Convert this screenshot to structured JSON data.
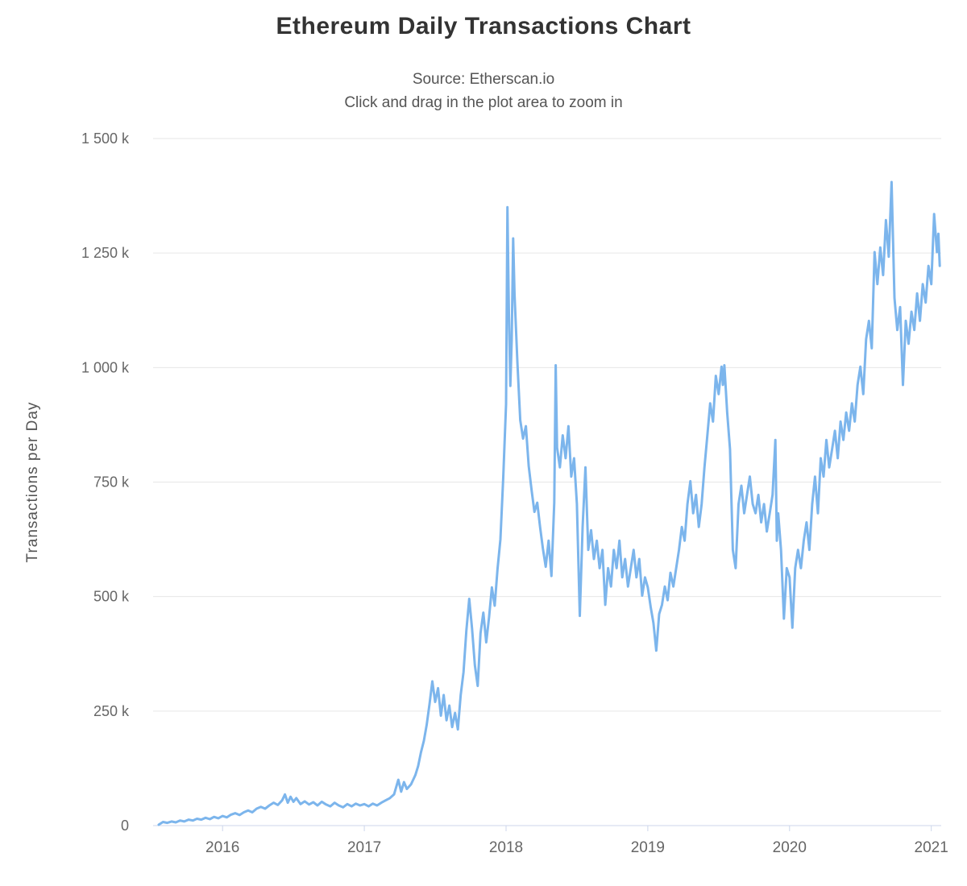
{
  "chart": {
    "title": "Ethereum Daily Transactions Chart",
    "subtitle_line1": "Source: Etherscan.io",
    "subtitle_line2": "Click and drag in the plot area to zoom in"
  },
  "chart_data": {
    "type": "line",
    "title": "Ethereum Daily Transactions Chart",
    "subtitle": [
      "Source: Etherscan.io",
      "Click and drag in the plot area to zoom in"
    ],
    "xlabel": "",
    "ylabel": "Transactions per Day",
    "x_unit": "year (decimal)",
    "y_unit": "transactions per day (thousands)",
    "xlim": [
      2015.51,
      2021.07
    ],
    "ylim": [
      0,
      1500
    ],
    "grid": "horizontal",
    "legend": "none",
    "line_color": "#7cb5ec",
    "grid_color": "#e6e6e6",
    "axis_color": "#ccd6eb",
    "yticks": [
      {
        "value": 0,
        "label": "0"
      },
      {
        "value": 250,
        "label": "250 k"
      },
      {
        "value": 500,
        "label": "500 k"
      },
      {
        "value": 750,
        "label": "750 k"
      },
      {
        "value": 1000,
        "label": "1 000 k"
      },
      {
        "value": 1250,
        "label": "1 250 k"
      },
      {
        "value": 1500,
        "label": "1 500 k"
      }
    ],
    "xticks": [
      {
        "value": 2016,
        "label": "2016"
      },
      {
        "value": 2017,
        "label": "2017"
      },
      {
        "value": 2018,
        "label": "2018"
      },
      {
        "value": 2019,
        "label": "2019"
      },
      {
        "value": 2020,
        "label": "2020"
      },
      {
        "value": 2021,
        "label": "2021"
      }
    ],
    "series": [
      {
        "name": "Transactions per Day",
        "points": [
          [
            2015.55,
            2
          ],
          [
            2015.58,
            8
          ],
          [
            2015.61,
            6
          ],
          [
            2015.64,
            9
          ],
          [
            2015.67,
            7
          ],
          [
            2015.7,
            11
          ],
          [
            2015.73,
            9
          ],
          [
            2015.76,
            13
          ],
          [
            2015.79,
            11
          ],
          [
            2015.82,
            15
          ],
          [
            2015.85,
            13
          ],
          [
            2015.88,
            17
          ],
          [
            2015.91,
            14
          ],
          [
            2015.94,
            19
          ],
          [
            2015.97,
            16
          ],
          [
            2016.0,
            21
          ],
          [
            2016.03,
            18
          ],
          [
            2016.06,
            24
          ],
          [
            2016.09,
            27
          ],
          [
            2016.12,
            23
          ],
          [
            2016.15,
            29
          ],
          [
            2016.18,
            33
          ],
          [
            2016.21,
            29
          ],
          [
            2016.24,
            37
          ],
          [
            2016.27,
            41
          ],
          [
            2016.3,
            37
          ],
          [
            2016.33,
            44
          ],
          [
            2016.36,
            50
          ],
          [
            2016.39,
            45
          ],
          [
            2016.42,
            55
          ],
          [
            2016.44,
            68
          ],
          [
            2016.46,
            50
          ],
          [
            2016.48,
            63
          ],
          [
            2016.5,
            52
          ],
          [
            2016.52,
            60
          ],
          [
            2016.55,
            47
          ],
          [
            2016.58,
            53
          ],
          [
            2016.61,
            46
          ],
          [
            2016.64,
            51
          ],
          [
            2016.67,
            44
          ],
          [
            2016.7,
            52
          ],
          [
            2016.73,
            46
          ],
          [
            2016.76,
            42
          ],
          [
            2016.79,
            50
          ],
          [
            2016.82,
            44
          ],
          [
            2016.85,
            40
          ],
          [
            2016.88,
            47
          ],
          [
            2016.91,
            42
          ],
          [
            2016.94,
            48
          ],
          [
            2016.97,
            44
          ],
          [
            2017.0,
            47
          ],
          [
            2017.03,
            42
          ],
          [
            2017.06,
            48
          ],
          [
            2017.09,
            44
          ],
          [
            2017.12,
            50
          ],
          [
            2017.15,
            55
          ],
          [
            2017.18,
            60
          ],
          [
            2017.21,
            68
          ],
          [
            2017.24,
            100
          ],
          [
            2017.26,
            74
          ],
          [
            2017.28,
            95
          ],
          [
            2017.3,
            80
          ],
          [
            2017.33,
            90
          ],
          [
            2017.36,
            110
          ],
          [
            2017.38,
            130
          ],
          [
            2017.4,
            160
          ],
          [
            2017.42,
            185
          ],
          [
            2017.44,
            220
          ],
          [
            2017.46,
            265
          ],
          [
            2017.48,
            315
          ],
          [
            2017.5,
            270
          ],
          [
            2017.52,
            300
          ],
          [
            2017.54,
            240
          ],
          [
            2017.56,
            285
          ],
          [
            2017.58,
            230
          ],
          [
            2017.6,
            262
          ],
          [
            2017.62,
            215
          ],
          [
            2017.64,
            246
          ],
          [
            2017.66,
            210
          ],
          [
            2017.68,
            285
          ],
          [
            2017.7,
            335
          ],
          [
            2017.72,
            425
          ],
          [
            2017.74,
            495
          ],
          [
            2017.76,
            430
          ],
          [
            2017.78,
            350
          ],
          [
            2017.8,
            305
          ],
          [
            2017.82,
            420
          ],
          [
            2017.84,
            465
          ],
          [
            2017.86,
            400
          ],
          [
            2017.88,
            455
          ],
          [
            2017.9,
            520
          ],
          [
            2017.92,
            480
          ],
          [
            2017.94,
            560
          ],
          [
            2017.96,
            625
          ],
          [
            2017.98,
            760
          ],
          [
            2018.0,
            920
          ],
          [
            2018.01,
            1350
          ],
          [
            2018.02,
            1120
          ],
          [
            2018.03,
            960
          ],
          [
            2018.04,
            1060
          ],
          [
            2018.05,
            1282
          ],
          [
            2018.06,
            1160
          ],
          [
            2018.08,
            1010
          ],
          [
            2018.1,
            885
          ],
          [
            2018.12,
            845
          ],
          [
            2018.14,
            872
          ],
          [
            2018.16,
            785
          ],
          [
            2018.18,
            732
          ],
          [
            2018.2,
            685
          ],
          [
            2018.22,
            705
          ],
          [
            2018.24,
            652
          ],
          [
            2018.26,
            605
          ],
          [
            2018.28,
            565
          ],
          [
            2018.3,
            622
          ],
          [
            2018.32,
            545
          ],
          [
            2018.34,
            705
          ],
          [
            2018.35,
            1005
          ],
          [
            2018.36,
            825
          ],
          [
            2018.38,
            782
          ],
          [
            2018.4,
            852
          ],
          [
            2018.42,
            802
          ],
          [
            2018.44,
            872
          ],
          [
            2018.46,
            762
          ],
          [
            2018.48,
            802
          ],
          [
            2018.5,
            702
          ],
          [
            2018.52,
            458
          ],
          [
            2018.54,
            652
          ],
          [
            2018.56,
            782
          ],
          [
            2018.58,
            602
          ],
          [
            2018.6,
            645
          ],
          [
            2018.62,
            582
          ],
          [
            2018.64,
            622
          ],
          [
            2018.66,
            562
          ],
          [
            2018.68,
            602
          ],
          [
            2018.7,
            482
          ],
          [
            2018.72,
            562
          ],
          [
            2018.74,
            522
          ],
          [
            2018.76,
            602
          ],
          [
            2018.78,
            562
          ],
          [
            2018.8,
            622
          ],
          [
            2018.82,
            542
          ],
          [
            2018.84,
            582
          ],
          [
            2018.86,
            522
          ],
          [
            2018.88,
            562
          ],
          [
            2018.9,
            602
          ],
          [
            2018.92,
            542
          ],
          [
            2018.94,
            582
          ],
          [
            2018.96,
            502
          ],
          [
            2018.98,
            542
          ],
          [
            2019.0,
            520
          ],
          [
            2019.02,
            478
          ],
          [
            2019.04,
            442
          ],
          [
            2019.06,
            382
          ],
          [
            2019.08,
            462
          ],
          [
            2019.1,
            482
          ],
          [
            2019.12,
            522
          ],
          [
            2019.14,
            492
          ],
          [
            2019.16,
            552
          ],
          [
            2019.18,
            522
          ],
          [
            2019.2,
            562
          ],
          [
            2019.22,
            602
          ],
          [
            2019.24,
            652
          ],
          [
            2019.26,
            622
          ],
          [
            2019.28,
            702
          ],
          [
            2019.3,
            752
          ],
          [
            2019.32,
            682
          ],
          [
            2019.34,
            722
          ],
          [
            2019.36,
            652
          ],
          [
            2019.38,
            702
          ],
          [
            2019.4,
            782
          ],
          [
            2019.42,
            852
          ],
          [
            2019.44,
            922
          ],
          [
            2019.46,
            882
          ],
          [
            2019.48,
            982
          ],
          [
            2019.5,
            942
          ],
          [
            2019.52,
            1002
          ],
          [
            2019.53,
            962
          ],
          [
            2019.54,
            1005
          ],
          [
            2019.56,
            902
          ],
          [
            2019.58,
            822
          ],
          [
            2019.6,
            602
          ],
          [
            2019.62,
            562
          ],
          [
            2019.64,
            702
          ],
          [
            2019.66,
            742
          ],
          [
            2019.68,
            682
          ],
          [
            2019.7,
            722
          ],
          [
            2019.72,
            762
          ],
          [
            2019.74,
            702
          ],
          [
            2019.76,
            682
          ],
          [
            2019.78,
            722
          ],
          [
            2019.8,
            662
          ],
          [
            2019.82,
            702
          ],
          [
            2019.84,
            642
          ],
          [
            2019.86,
            682
          ],
          [
            2019.88,
            722
          ],
          [
            2019.9,
            842
          ],
          [
            2019.91,
            622
          ],
          [
            2019.92,
            682
          ],
          [
            2019.94,
            602
          ],
          [
            2019.96,
            452
          ],
          [
            2019.98,
            562
          ],
          [
            2020.0,
            542
          ],
          [
            2020.02,
            432
          ],
          [
            2020.04,
            562
          ],
          [
            2020.06,
            602
          ],
          [
            2020.08,
            562
          ],
          [
            2020.1,
            622
          ],
          [
            2020.12,
            662
          ],
          [
            2020.14,
            602
          ],
          [
            2020.16,
            702
          ],
          [
            2020.18,
            762
          ],
          [
            2020.2,
            682
          ],
          [
            2020.22,
            802
          ],
          [
            2020.24,
            762
          ],
          [
            2020.26,
            842
          ],
          [
            2020.28,
            782
          ],
          [
            2020.3,
            822
          ],
          [
            2020.32,
            862
          ],
          [
            2020.34,
            802
          ],
          [
            2020.36,
            882
          ],
          [
            2020.38,
            842
          ],
          [
            2020.4,
            902
          ],
          [
            2020.42,
            862
          ],
          [
            2020.44,
            922
          ],
          [
            2020.46,
            882
          ],
          [
            2020.48,
            962
          ],
          [
            2020.5,
            1002
          ],
          [
            2020.52,
            942
          ],
          [
            2020.54,
            1062
          ],
          [
            2020.56,
            1102
          ],
          [
            2020.58,
            1042
          ],
          [
            2020.6,
            1252
          ],
          [
            2020.62,
            1182
          ],
          [
            2020.64,
            1262
          ],
          [
            2020.66,
            1202
          ],
          [
            2020.68,
            1322
          ],
          [
            2020.7,
            1242
          ],
          [
            2020.72,
            1405
          ],
          [
            2020.74,
            1152
          ],
          [
            2020.76,
            1082
          ],
          [
            2020.78,
            1132
          ],
          [
            2020.8,
            962
          ],
          [
            2020.82,
            1102
          ],
          [
            2020.84,
            1052
          ],
          [
            2020.86,
            1122
          ],
          [
            2020.88,
            1082
          ],
          [
            2020.9,
            1162
          ],
          [
            2020.92,
            1102
          ],
          [
            2020.94,
            1182
          ],
          [
            2020.96,
            1142
          ],
          [
            2020.98,
            1222
          ],
          [
            2021.0,
            1182
          ],
          [
            2021.02,
            1335
          ],
          [
            2021.04,
            1252
          ],
          [
            2021.05,
            1292
          ],
          [
            2021.06,
            1222
          ]
        ]
      }
    ]
  }
}
